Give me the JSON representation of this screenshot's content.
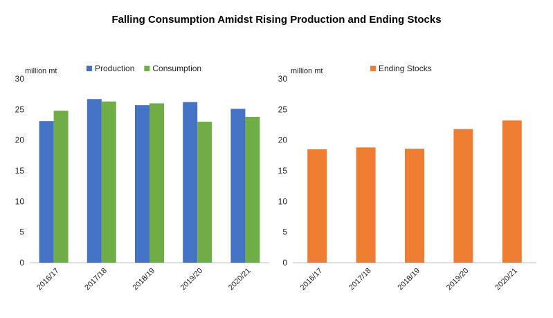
{
  "title": "Falling Consumption Amidst Rising Production and Ending Stocks",
  "colors": {
    "production": "#4472C4",
    "consumption": "#70AD47",
    "ending_stocks": "#ED7D31"
  },
  "chart_data": [
    {
      "type": "bar",
      "ylabel": "million mt",
      "ylim": [
        0,
        30
      ],
      "yticks": [
        "0",
        "5",
        "10",
        "15",
        "20",
        "25",
        "30"
      ],
      "legend_position": "top",
      "grid": false,
      "categories": [
        "2016/17",
        "2017/18",
        "2018/19",
        "2019/20",
        "2020/21"
      ],
      "series": [
        {
          "name": "Production",
          "color": "#4472C4",
          "values": [
            23.1,
            26.7,
            25.7,
            26.2,
            25.1
          ]
        },
        {
          "name": "Consumption",
          "color": "#70AD47",
          "values": [
            24.8,
            26.3,
            26.0,
            23.0,
            23.8
          ]
        }
      ]
    },
    {
      "type": "bar",
      "ylabel": "million mt",
      "ylim": [
        0,
        30
      ],
      "yticks": [
        "0",
        "5",
        "10",
        "15",
        "20",
        "25",
        "30"
      ],
      "legend_position": "top",
      "grid": false,
      "categories": [
        "2016/17",
        "2017/18",
        "2018/19",
        "2019/20",
        "2020/21"
      ],
      "series": [
        {
          "name": "Ending Stocks",
          "color": "#ED7D31",
          "values": [
            18.5,
            18.8,
            18.6,
            21.8,
            23.2
          ]
        }
      ]
    }
  ]
}
